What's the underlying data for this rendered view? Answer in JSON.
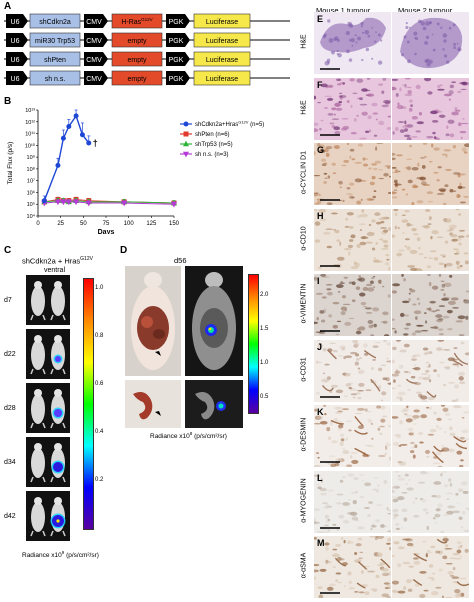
{
  "panels": {
    "A": {
      "label": "A",
      "constructs": [
        {
          "u6": "U6",
          "shrna": "shCdkn2a",
          "cmv": "CMV",
          "oncogene": "H-Ras",
          "oncogene_sup": "G12V",
          "pgk": "PGK",
          "reporter": "Luciferase"
        },
        {
          "u6": "U6",
          "shrna": "miR30 Trp53",
          "cmv": "CMV",
          "oncogene": "empty",
          "oncogene_sup": "",
          "pgk": "PGK",
          "reporter": "Luciferase"
        },
        {
          "u6": "U6",
          "shrna": "shPten",
          "cmv": "CMV",
          "oncogene": "empty",
          "oncogene_sup": "",
          "pgk": "PGK",
          "reporter": "Luciferase"
        },
        {
          "u6": "U6",
          "shrna": "sh n.s.",
          "cmv": "CMV",
          "oncogene": "empty",
          "oncogene_sup": "",
          "pgk": "PGK",
          "reporter": "Luciferase"
        }
      ]
    },
    "B": {
      "label": "B",
      "dagger": "†",
      "chart_data": {
        "type": "line",
        "xlabel": "Days",
        "ylabel": "Total Flux (p/s)",
        "xlim": [
          0,
          150
        ],
        "xticks": [
          0,
          25,
          50,
          75,
          100,
          125,
          150
        ],
        "ylog": true,
        "ylim_exp": [
          4,
          13
        ],
        "yticks": [
          "10⁴",
          "10⁵",
          "10⁶",
          "10⁷",
          "10⁸",
          "10⁹",
          "10¹⁰",
          "10¹¹",
          "10¹²",
          "10¹³"
        ],
        "legend_position": "right",
        "series": [
          {
            "name": "shCdkn2a+Hras",
            "name_sup": "G12V",
            "n": "(n=5)",
            "color": "#1f47d6",
            "marker": "circle",
            "x": [
              7,
              22,
              28,
              34,
              42,
              49,
              56
            ],
            "y_exp": [
              5.3,
              8.3,
              10.6,
              11.6,
              12.5,
              10.9,
              10.2
            ],
            "err_exp": [
              0.4,
              0.6,
              0.7,
              0.6,
              0.5,
              1.0,
              0.6
            ]
          },
          {
            "name": "shPten",
            "name_sup": "",
            "n": "(n=6)",
            "color": "#e03a2f",
            "marker": "square",
            "x": [
              7,
              22,
              28,
              34,
              42,
              56,
              95,
              150
            ],
            "y_exp": [
              5.2,
              5.4,
              5.3,
              5.3,
              5.4,
              5.3,
              5.2,
              5.1
            ],
            "err_exp": [
              0.2,
              0.2,
              0.2,
              0.2,
              0.2,
              0.2,
              0.2,
              0.2
            ]
          },
          {
            "name": "shTrp53",
            "name_sup": "",
            "n": "(n=5)",
            "color": "#2fb53a",
            "marker": "triangle",
            "x": [
              7,
              22,
              28,
              34,
              42,
              56,
              95,
              150
            ],
            "y_exp": [
              5.2,
              5.3,
              5.3,
              5.2,
              5.3,
              5.2,
              5.2,
              5.1
            ],
            "err_exp": [
              0.2,
              0.2,
              0.2,
              0.2,
              0.2,
              0.2,
              0.2,
              0.2
            ]
          },
          {
            "name": "sh n.s.",
            "name_sup": "",
            "n": "(n=3)",
            "color": "#b53ad6",
            "marker": "triangle-down",
            "x": [
              7,
              22,
              28,
              34,
              42,
              56,
              95,
              150
            ],
            "y_exp": [
              5.1,
              5.2,
              5.2,
              5.2,
              5.2,
              5.1,
              5.1,
              5.0
            ],
            "err_exp": [
              0.2,
              0.2,
              0.2,
              0.2,
              0.2,
              0.2,
              0.2,
              0.2
            ]
          }
        ]
      }
    },
    "C": {
      "label": "C",
      "title": "shCdkn2a + Hras",
      "title_sup": "G12V",
      "view": "ventral",
      "days": [
        "d7",
        "d22",
        "d28",
        "d34",
        "d42"
      ],
      "signal": [
        0.05,
        0.25,
        0.5,
        0.75,
        1.0
      ],
      "scale_ticks": [
        "1.0",
        "0.8",
        "0.6",
        "0.4",
        "0.2"
      ],
      "radiance_label": "Radiance x10",
      "radiance_exp": "9",
      "radiance_units": " (p/s/cm²/sr)"
    },
    "D": {
      "label": "D",
      "day": "d56",
      "scale_ticks": [
        "2.0",
        "1.5",
        "1.0",
        "0.5"
      ],
      "radiance_label": "Radiance x10",
      "radiance_exp": "8",
      "radiance_units": " (p/s/cm²/sr)"
    },
    "histology": {
      "col1": "Mouse 1 tumour",
      "col2": "Mouse 2 tumour",
      "rows": [
        {
          "panel": "E",
          "stain": "H&E"
        },
        {
          "panel": "F",
          "stain": "H&E"
        },
        {
          "panel": "G",
          "stain": "α-CYCLIN D1"
        },
        {
          "panel": "H",
          "stain": "α-CD10"
        },
        {
          "panel": "I",
          "stain": "α-VIMENTIN"
        },
        {
          "panel": "J",
          "stain": "α-CD31"
        },
        {
          "panel": "K",
          "stain": "α-DESMIN"
        },
        {
          "panel": "L",
          "stain": "α-MYOGENIN"
        },
        {
          "panel": "M",
          "stain": "α-αSMA"
        }
      ]
    }
  }
}
